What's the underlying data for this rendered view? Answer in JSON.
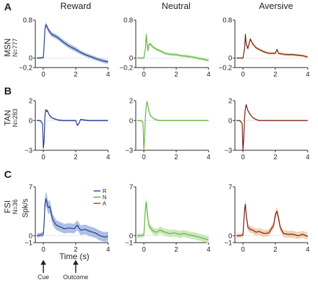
{
  "columns": [
    "Reward",
    "Neutral",
    "Aversive"
  ],
  "rows": [
    {
      "letter": "A",
      "name": "MSN",
      "n": "N=777",
      "yticks": [
        "0.8",
        "0",
        "−0.2"
      ],
      "ylim": [
        -0.2,
        0.8
      ]
    },
    {
      "letter": "B",
      "name": "TAN",
      "n": "N=283",
      "yticks": [
        "2",
        "0",
        "−3"
      ],
      "ylim": [
        -3,
        2
      ]
    },
    {
      "letter": "C",
      "name": "FSI",
      "n": "N=36",
      "yticks": [
        "7",
        "0",
        "−1"
      ],
      "ylim": [
        -1,
        7
      ]
    }
  ],
  "xticks": [
    "0",
    "2",
    "4"
  ],
  "ylabel": "Spk/s",
  "xlabel": "Time (s)",
  "annotations": {
    "cue": "Cue",
    "outcome": "Outcome"
  },
  "legend": [
    {
      "label": "R",
      "color": "#2b4ba0"
    },
    {
      "label": "N",
      "color": "#5fae3c"
    },
    {
      "label": "A",
      "color": "#d0312d"
    }
  ],
  "colors": {
    "reward": "#1f3a8a",
    "reward_band": "#9fb4de",
    "neutral": "#5fb33b",
    "neutral_band": "#c4e3b1",
    "aversive": "#6b1a10",
    "aversive_band": "#f2c7a4"
  },
  "chart_data": [
    {
      "type": "line",
      "row": "MSN",
      "condition": "Reward",
      "xlim": [
        -0.5,
        4
      ],
      "ylim": [
        -0.2,
        0.8
      ],
      "x": [
        -0.4,
        -0.2,
        0.0,
        0.05,
        0.1,
        0.15,
        0.2,
        0.3,
        0.5,
        0.8,
        1.0,
        1.3,
        1.6,
        2.0,
        2.3,
        2.6,
        3.0,
        3.3,
        3.6,
        3.8,
        4.0
      ],
      "y": [
        0.0,
        0.0,
        0.01,
        0.3,
        0.6,
        0.7,
        0.68,
        0.6,
        0.5,
        0.45,
        0.4,
        0.32,
        0.25,
        0.18,
        0.12,
        0.07,
        0.02,
        -0.02,
        -0.05,
        -0.07,
        -0.08
      ],
      "band": [
        0.02,
        0.02,
        0.02,
        0.04,
        0.05,
        0.05,
        0.05,
        0.05,
        0.05,
        0.05,
        0.05,
        0.05,
        0.05,
        0.05,
        0.04,
        0.04,
        0.04,
        0.04,
        0.04,
        0.04,
        0.04
      ]
    },
    {
      "type": "line",
      "row": "MSN",
      "condition": "Neutral",
      "xlim": [
        -0.5,
        4
      ],
      "ylim": [
        -0.2,
        0.8
      ],
      "x": [
        -0.4,
        -0.2,
        0.0,
        0.1,
        0.15,
        0.2,
        0.25,
        0.3,
        0.4,
        0.5,
        0.7,
        1.0,
        1.3,
        1.6,
        2.0,
        2.3,
        2.6,
        3.0,
        3.3,
        3.6,
        4.0
      ],
      "y": [
        0.0,
        0.0,
        0.0,
        0.2,
        0.5,
        0.3,
        0.15,
        0.28,
        0.3,
        0.25,
        0.2,
        0.15,
        0.1,
        0.08,
        0.07,
        0.05,
        0.04,
        0.02,
        0.0,
        -0.02,
        -0.05
      ],
      "band": [
        0.02,
        0.02,
        0.02,
        0.03,
        0.04,
        0.04,
        0.03,
        0.03,
        0.03,
        0.03,
        0.03,
        0.03,
        0.03,
        0.03,
        0.03,
        0.03,
        0.03,
        0.03,
        0.03,
        0.03,
        0.03
      ]
    },
    {
      "type": "line",
      "row": "MSN",
      "condition": "Aversive",
      "xlim": [
        -0.5,
        4
      ],
      "ylim": [
        -0.2,
        0.8
      ],
      "x": [
        -0.4,
        -0.2,
        0.0,
        0.1,
        0.15,
        0.2,
        0.3,
        0.45,
        0.6,
        0.8,
        1.0,
        1.3,
        1.6,
        2.0,
        2.1,
        2.2,
        2.5,
        2.8,
        3.1,
        3.4,
        3.7,
        4.0
      ],
      "y": [
        0.0,
        0.0,
        0.0,
        0.2,
        0.5,
        0.3,
        0.2,
        0.4,
        0.3,
        0.22,
        0.18,
        0.13,
        0.1,
        0.1,
        0.18,
        0.1,
        0.08,
        0.07,
        0.07,
        0.06,
        0.05,
        0.02
      ],
      "band": [
        0.02,
        0.02,
        0.02,
        0.03,
        0.04,
        0.04,
        0.04,
        0.04,
        0.04,
        0.03,
        0.03,
        0.03,
        0.03,
        0.03,
        0.03,
        0.03,
        0.03,
        0.03,
        0.03,
        0.03,
        0.03,
        0.03
      ]
    },
    {
      "type": "line",
      "row": "TAN",
      "condition": "Reward",
      "xlim": [
        -0.5,
        4
      ],
      "ylim": [
        -3,
        2
      ],
      "x": [
        -0.4,
        -0.2,
        -0.05,
        0.0,
        0.05,
        0.1,
        0.15,
        0.2,
        0.25,
        0.35,
        0.5,
        0.7,
        0.9,
        1.2,
        1.5,
        1.8,
        2.0,
        2.1,
        2.2,
        2.3,
        2.5,
        2.8,
        3.2,
        3.6,
        4.0
      ],
      "y": [
        0.0,
        0.0,
        -0.3,
        -2.8,
        -2.0,
        0.5,
        1.1,
        0.9,
        1.0,
        0.6,
        0.3,
        0.15,
        0.05,
        0.0,
        0.0,
        0.0,
        0.0,
        -0.5,
        -0.3,
        0.1,
        0.05,
        0.0,
        0.0,
        0.0,
        0.0
      ],
      "band": [
        0.08,
        0.08,
        0.1,
        0.15,
        0.15,
        0.12,
        0.12,
        0.12,
        0.12,
        0.1,
        0.08,
        0.08,
        0.08,
        0.08,
        0.08,
        0.08,
        0.08,
        0.1,
        0.1,
        0.08,
        0.08,
        0.08,
        0.08,
        0.08,
        0.08
      ]
    },
    {
      "type": "line",
      "row": "TAN",
      "condition": "Neutral",
      "xlim": [
        -0.5,
        4
      ],
      "ylim": [
        -3,
        2
      ],
      "x": [
        -0.4,
        -0.2,
        -0.05,
        0.0,
        0.05,
        0.1,
        0.15,
        0.2,
        0.3,
        0.4,
        0.6,
        0.8,
        1.0,
        1.3,
        1.6,
        2.0,
        2.5,
        3.0,
        3.5,
        4.0
      ],
      "y": [
        0.0,
        0.0,
        -0.2,
        -2.9,
        -1.5,
        0.5,
        1.5,
        1.9,
        1.0,
        0.5,
        0.2,
        0.05,
        0.0,
        0.0,
        0.0,
        0.0,
        0.0,
        0.0,
        0.0,
        0.0
      ],
      "band": [
        0.08,
        0.08,
        0.1,
        0.15,
        0.15,
        0.12,
        0.12,
        0.12,
        0.1,
        0.08,
        0.08,
        0.08,
        0.08,
        0.08,
        0.08,
        0.08,
        0.08,
        0.08,
        0.08,
        0.08
      ]
    },
    {
      "type": "line",
      "row": "TAN",
      "condition": "Aversive",
      "xlim": [
        -0.5,
        4
      ],
      "ylim": [
        -3,
        2
      ],
      "x": [
        -0.4,
        -0.2,
        -0.05,
        0.0,
        0.05,
        0.1,
        0.15,
        0.2,
        0.3,
        0.45,
        0.6,
        0.8,
        1.0,
        1.3,
        1.6,
        2.0,
        2.5,
        3.0,
        3.5,
        4.0
      ],
      "y": [
        0.0,
        0.0,
        -0.3,
        -3.0,
        -1.8,
        0.4,
        1.2,
        1.6,
        1.0,
        0.6,
        0.3,
        0.1,
        0.0,
        0.0,
        0.0,
        0.0,
        0.0,
        0.0,
        0.0,
        0.0
      ],
      "band": [
        0.08,
        0.08,
        0.1,
        0.15,
        0.15,
        0.12,
        0.12,
        0.12,
        0.1,
        0.08,
        0.08,
        0.08,
        0.08,
        0.08,
        0.08,
        0.08,
        0.08,
        0.08,
        0.08,
        0.08
      ]
    },
    {
      "type": "line",
      "row": "FSI",
      "condition": "Reward",
      "xlim": [
        -0.5,
        4
      ],
      "ylim": [
        -1,
        7
      ],
      "x": [
        -0.4,
        -0.2,
        0.0,
        0.05,
        0.1,
        0.15,
        0.2,
        0.3,
        0.4,
        0.5,
        0.6,
        0.8,
        1.0,
        1.3,
        1.6,
        1.9,
        2.1,
        2.3,
        2.6,
        2.9,
        3.2,
        3.5,
        3.8,
        4.0
      ],
      "y": [
        0.0,
        0.1,
        0.2,
        2.0,
        4.5,
        5.3,
        5.0,
        4.0,
        4.2,
        3.0,
        2.2,
        1.5,
        1.3,
        1.0,
        1.1,
        1.0,
        1.5,
        0.8,
        0.9,
        0.6,
        0.4,
        0.0,
        -0.2,
        -0.1
      ],
      "band": [
        0.3,
        0.3,
        0.4,
        0.7,
        0.9,
        1.0,
        1.0,
        0.9,
        0.9,
        0.8,
        0.8,
        0.7,
        0.7,
        0.7,
        0.7,
        0.7,
        0.7,
        0.7,
        0.7,
        0.7,
        0.7,
        0.7,
        0.7,
        0.7
      ]
    },
    {
      "type": "line",
      "row": "FSI",
      "condition": "Neutral",
      "xlim": [
        -0.5,
        4
      ],
      "ylim": [
        -1,
        7
      ],
      "x": [
        -0.4,
        -0.2,
        0.0,
        0.05,
        0.1,
        0.15,
        0.2,
        0.3,
        0.45,
        0.6,
        0.8,
        1.0,
        1.3,
        1.6,
        1.9,
        2.2,
        2.5,
        2.8,
        3.1,
        3.4,
        3.7,
        4.0
      ],
      "y": [
        0.0,
        0.0,
        0.1,
        2.0,
        4.0,
        4.8,
        3.5,
        1.5,
        1.0,
        0.6,
        0.5,
        0.8,
        0.5,
        0.3,
        0.4,
        0.2,
        0.3,
        0.1,
        0.0,
        -0.2,
        -0.4,
        -0.6
      ],
      "band": [
        0.3,
        0.3,
        0.3,
        0.6,
        0.7,
        0.8,
        0.7,
        0.5,
        0.5,
        0.5,
        0.5,
        0.5,
        0.5,
        0.5,
        0.5,
        0.5,
        0.5,
        0.5,
        0.5,
        0.5,
        0.5,
        0.5
      ]
    },
    {
      "type": "line",
      "row": "FSI",
      "condition": "Aversive",
      "xlim": [
        -0.5,
        4
      ],
      "ylim": [
        -1,
        7
      ],
      "x": [
        -0.4,
        -0.2,
        0.0,
        0.05,
        0.1,
        0.15,
        0.2,
        0.3,
        0.45,
        0.6,
        0.8,
        1.0,
        1.3,
        1.6,
        1.9,
        2.0,
        2.1,
        2.2,
        2.3,
        2.5,
        2.8,
        3.1,
        3.4,
        3.7,
        4.0
      ],
      "y": [
        0.0,
        0.0,
        0.1,
        2.0,
        3.8,
        4.5,
        3.0,
        1.2,
        0.9,
        0.8,
        0.5,
        0.6,
        0.3,
        0.4,
        1.5,
        3.0,
        3.5,
        2.5,
        1.2,
        0.3,
        0.2,
        0.2,
        0.0,
        0.2,
        -0.1
      ],
      "band": [
        0.3,
        0.3,
        0.3,
        0.5,
        0.6,
        0.7,
        0.6,
        0.5,
        0.5,
        0.5,
        0.5,
        0.5,
        0.5,
        0.5,
        0.5,
        0.6,
        0.6,
        0.6,
        0.5,
        0.5,
        0.5,
        0.5,
        0.5,
        0.5,
        0.5
      ]
    }
  ]
}
